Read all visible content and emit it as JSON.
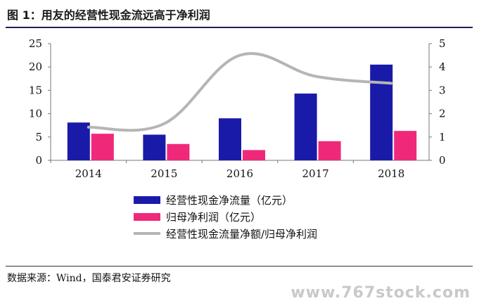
{
  "title": "图 1：用友的经营性现金流远高于净利润",
  "chart_data": {
    "type": "bar",
    "categories": [
      "2014",
      "2015",
      "2016",
      "2017",
      "2018"
    ],
    "series": [
      {
        "name": "经营性现金净流量（亿元）",
        "kind": "bar",
        "axis": "left",
        "color": "#1a1aa8",
        "values": [
          8.1,
          5.5,
          9.0,
          14.3,
          20.5
        ]
      },
      {
        "name": "归母净利润（亿元）",
        "kind": "bar",
        "axis": "left",
        "color": "#f0287a",
        "values": [
          5.7,
          3.5,
          2.2,
          4.1,
          6.3
        ]
      },
      {
        "name": "经营性现金流量净额/归母净利润",
        "kind": "line",
        "axis": "right",
        "color": "#b5b5b5",
        "values": [
          1.42,
          1.57,
          4.5,
          3.6,
          3.3
        ]
      }
    ],
    "y_left": {
      "min": 0,
      "max": 25,
      "ticks": [
        "0",
        "5",
        "10",
        "15",
        "20",
        "25"
      ]
    },
    "y_right": {
      "min": 0,
      "max": 5,
      "ticks": [
        "0",
        "1",
        "2",
        "3",
        "4",
        "5"
      ]
    },
    "grid": false,
    "legend_position": "bottom"
  },
  "legend": {
    "items": [
      {
        "label": "经营性现金净流量（亿元）",
        "color": "#1a1aa8"
      },
      {
        "label": "归母净利润（亿元）",
        "color": "#f0287a"
      },
      {
        "label": "经营性现金流量净额/归母净利润",
        "color": "#b5b5b5"
      }
    ]
  },
  "source": "数据来源：Wind，国泰君安证券研究",
  "watermark": "www.767stock.com"
}
